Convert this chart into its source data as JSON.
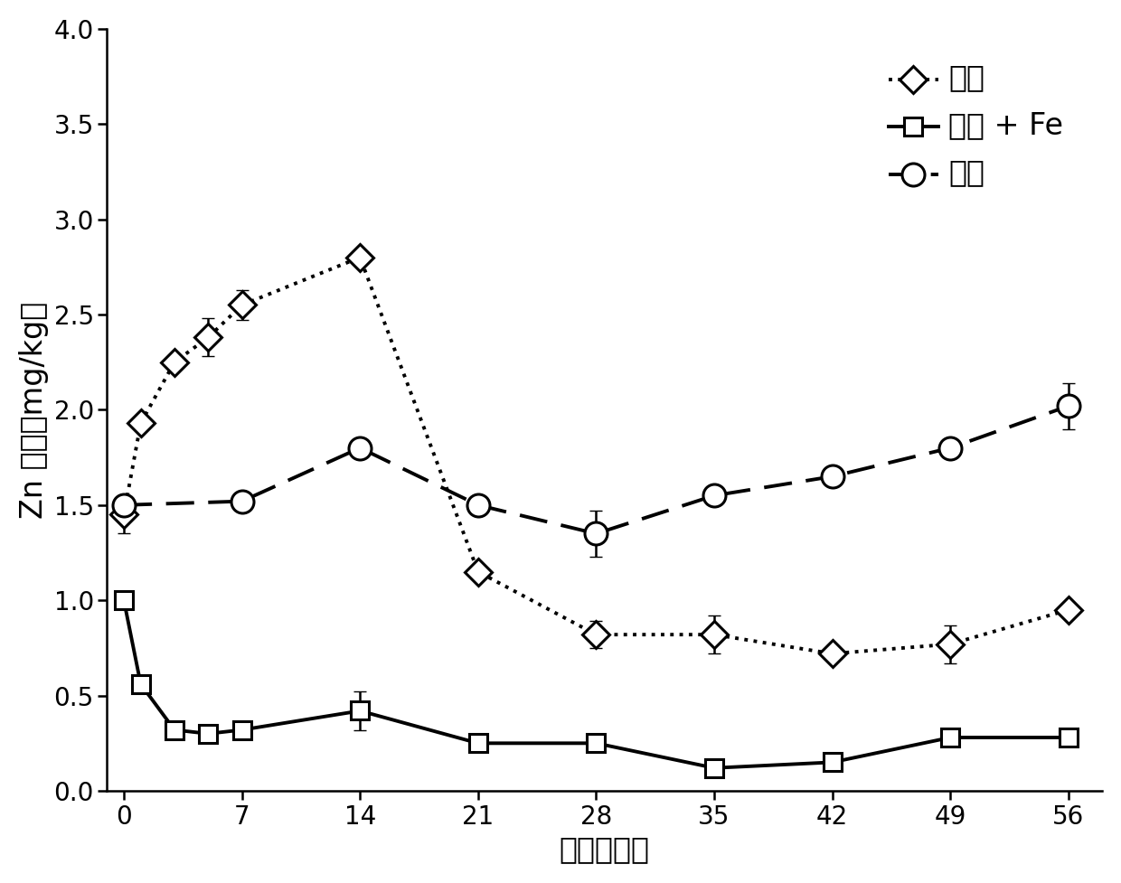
{
  "series": {
    "remediated": {
      "label": "修复",
      "x": [
        0,
        1,
        3,
        5,
        7,
        14,
        21,
        28,
        35,
        42,
        49,
        56
      ],
      "y": [
        1.45,
        1.93,
        2.25,
        2.38,
        2.55,
        2.8,
        1.15,
        0.82,
        0.82,
        0.72,
        0.77,
        0.95
      ],
      "yerr": [
        0.1,
        0,
        0,
        0.1,
        0.08,
        0,
        0,
        0.07,
        0.1,
        0,
        0.1,
        0
      ],
      "linestyle": "dotted",
      "marker": "D",
      "linewidth": 2.8,
      "markersize": 15,
      "color": "#000000"
    },
    "remediated_fe": {
      "label": "修复 + Fe",
      "x": [
        0,
        1,
        3,
        5,
        7,
        14,
        21,
        28,
        35,
        42,
        49,
        56
      ],
      "y": [
        1.0,
        0.56,
        0.32,
        0.3,
        0.32,
        0.42,
        0.25,
        0.25,
        0.12,
        0.15,
        0.28,
        0.28
      ],
      "yerr": [
        0,
        0,
        0,
        0,
        0,
        0.1,
        0,
        0,
        0,
        0,
        0,
        0
      ],
      "linestyle": "solid",
      "marker": "s",
      "linewidth": 2.8,
      "markersize": 15,
      "color": "#000000"
    },
    "original": {
      "label": "原始",
      "x": [
        0,
        7,
        14,
        21,
        28,
        35,
        42,
        49,
        56
      ],
      "y": [
        1.5,
        1.52,
        1.8,
        1.5,
        1.35,
        1.55,
        1.65,
        1.8,
        2.02
      ],
      "yerr": [
        0,
        0,
        0,
        0,
        0.12,
        0,
        0,
        0,
        0.12
      ],
      "linestyle": "dashed",
      "marker": "o",
      "linewidth": 2.8,
      "markersize": 18,
      "color": "#000000"
    }
  },
  "xlabel": "时间（天）",
  "ylabel": "Zn 浓度（mg/kg）",
  "xlim": [
    -1,
    58
  ],
  "ylim": [
    0,
    4.0
  ],
  "yticks": [
    0.0,
    0.5,
    1.0,
    1.5,
    2.0,
    2.5,
    3.0,
    3.5,
    4.0
  ],
  "xticks": [
    0,
    7,
    14,
    21,
    28,
    35,
    42,
    49,
    56
  ],
  "legend_labels": [
    "修复",
    "修复 + Fe",
    "原始"
  ],
  "legend_loc": "upper right",
  "background_color": "#ffffff",
  "tick_fontsize": 20,
  "label_fontsize": 24,
  "legend_fontsize": 24
}
